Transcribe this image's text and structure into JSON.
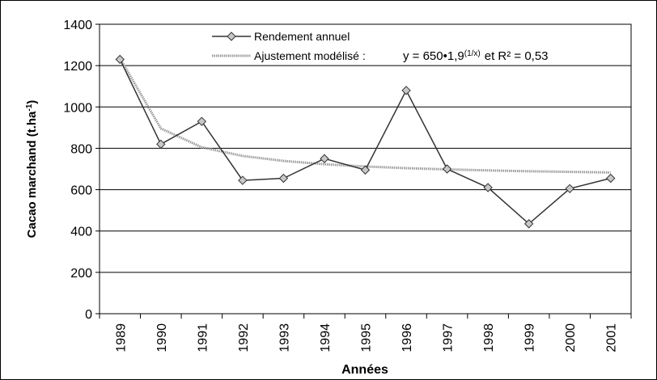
{
  "chart_data": {
    "type": "line",
    "x_label": "Années",
    "y_label": {
      "main": "Cacao marchand (t.ha",
      "superscript": "-1",
      "end": ")"
    },
    "categories": [
      "1989",
      "1990",
      "1991",
      "1992",
      "1993",
      "1994",
      "1995",
      "1996",
      "1997",
      "1998",
      "1999",
      "2000",
      "2001"
    ],
    "series": [
      {
        "name": "Rendement annuel",
        "color": "#333333",
        "marker": "diamond",
        "values": [
          1230,
          820,
          930,
          645,
          655,
          750,
          695,
          1080,
          700,
          610,
          435,
          605,
          655
        ]
      },
      {
        "name": "Ajustement modélisé :",
        "color": "#9a9a9a",
        "marker": "none",
        "values": [
          1235,
          896,
          805,
          763,
          739,
          723,
          712,
          704,
          698,
          693,
          689,
          686,
          683
        ]
      }
    ],
    "equation": {
      "base": "y = 650•1,9",
      "exponent": "(1/x)",
      "rest": "et R² = 0,53"
    },
    "ylim": [
      0,
      1400
    ],
    "yticks": [
      0,
      200,
      400,
      600,
      800,
      1000,
      1200,
      1400
    ],
    "grid": true
  }
}
